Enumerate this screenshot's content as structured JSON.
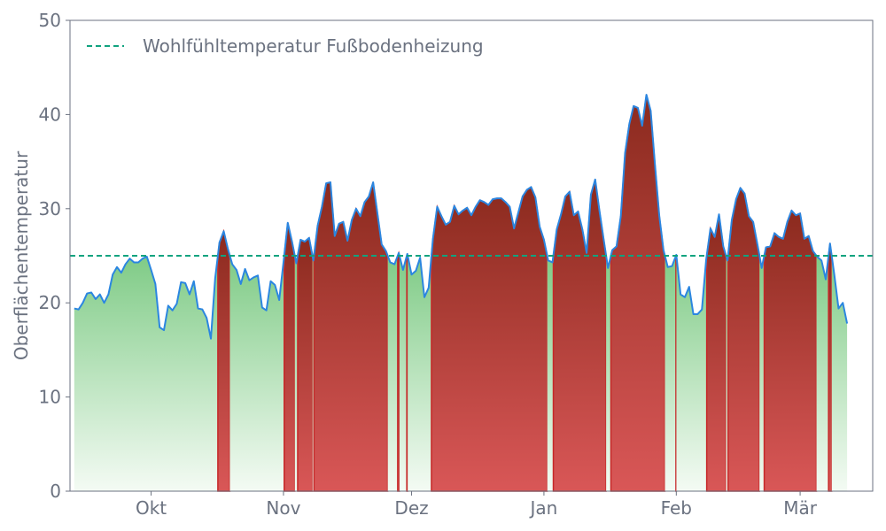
{
  "chart_data": {
    "type": "area",
    "ylabel": "Oberflächentemperatur",
    "xlabel": "",
    "ylim": [
      0,
      50
    ],
    "yticks": [
      0,
      10,
      20,
      30,
      40,
      50
    ],
    "x_start": "2023-09-12",
    "x_end": "2024-03-18",
    "xticks": [
      {
        "date": "2023-10-01",
        "label": "Okt"
      },
      {
        "date": "2023-11-01",
        "label": "Nov"
      },
      {
        "date": "2023-12-01",
        "label": "Dez"
      },
      {
        "date": "2024-01-01",
        "label": "Jan"
      },
      {
        "date": "2024-02-01",
        "label": "Feb"
      },
      {
        "date": "2024-03-01",
        "label": "Mär"
      }
    ],
    "threshold": {
      "value": 25,
      "label": "Wohlfühltemperatur Fußbodenheizung"
    },
    "series": [
      {
        "start_date": "2023-09-13",
        "step_days": 1,
        "values": [
          19.4,
          19.3,
          20.0,
          21.0,
          21.1,
          20.4,
          20.9,
          20.0,
          20.9,
          23.0,
          23.8,
          23.2,
          24.1,
          24.7,
          24.3,
          24.3,
          24.7,
          24.9,
          23.5,
          22.0,
          17.4,
          17.1,
          19.7,
          19.2,
          19.9,
          22.2,
          22.1,
          20.9,
          22.3,
          19.4,
          19.3,
          18.4,
          16.2,
          22.6,
          26.4,
          27.6,
          25.7,
          24.1,
          23.5,
          22.0,
          23.6,
          22.4,
          22.7,
          22.9,
          19.5,
          19.2,
          22.3,
          21.9,
          20.3,
          24.3,
          28.5,
          26.5,
          24.2,
          26.7,
          26.5,
          26.9,
          24.5,
          28.2,
          30.2,
          32.7,
          32.8,
          27.1,
          28.4,
          28.6,
          26.6,
          28.8,
          30.0,
          29.2,
          30.7,
          31.3,
          32.8,
          29.5,
          26.2,
          25.5,
          24.3,
          24.1,
          25.3,
          23.5,
          25.2,
          23.0,
          23.4,
          24.8,
          20.6,
          21.6,
          26.8,
          30.2,
          29.2,
          28.3,
          28.6,
          30.3,
          29.4,
          29.8,
          30.1,
          29.3,
          30.2,
          30.9,
          30.7,
          30.4,
          31.0,
          31.1,
          31.1,
          30.7,
          30.2,
          27.9,
          29.6,
          31.3,
          32.0,
          32.3,
          31.2,
          28.1,
          26.7,
          24.5,
          24.3,
          27.8,
          29.4,
          31.3,
          31.8,
          29.3,
          29.7,
          27.8,
          25.3,
          31.5,
          33.1,
          29.8,
          26.7,
          23.7,
          25.6,
          26.0,
          29.2,
          35.9,
          39.0,
          40.9,
          40.7,
          38.8,
          42.1,
          40.4,
          34.7,
          29.3,
          25.6,
          23.8,
          23.9,
          25.1,
          20.9,
          20.6,
          21.7,
          18.8,
          18.8,
          19.3,
          24.6,
          27.9,
          27.0,
          29.4,
          26.0,
          24.5,
          28.8,
          31.0,
          32.2,
          31.6,
          29.2,
          28.6,
          26.2,
          23.7,
          25.9,
          26.0,
          27.4,
          27.0,
          26.8,
          28.6,
          29.8,
          29.3,
          29.5,
          26.8,
          27.1,
          25.5,
          24.9,
          24.5,
          22.5,
          26.3,
          23.0,
          19.4,
          20.0,
          17.8
        ]
      }
    ],
    "colors": {
      "line": "#2b86e0",
      "threshold": "#10a37f",
      "above_fill_top": "#8b2a1e",
      "above_fill_bottom": "#d95757",
      "below_fill_top": "#7fcb86",
      "below_fill_bottom": "#f4fbf4",
      "axis": "#6b7280"
    }
  }
}
